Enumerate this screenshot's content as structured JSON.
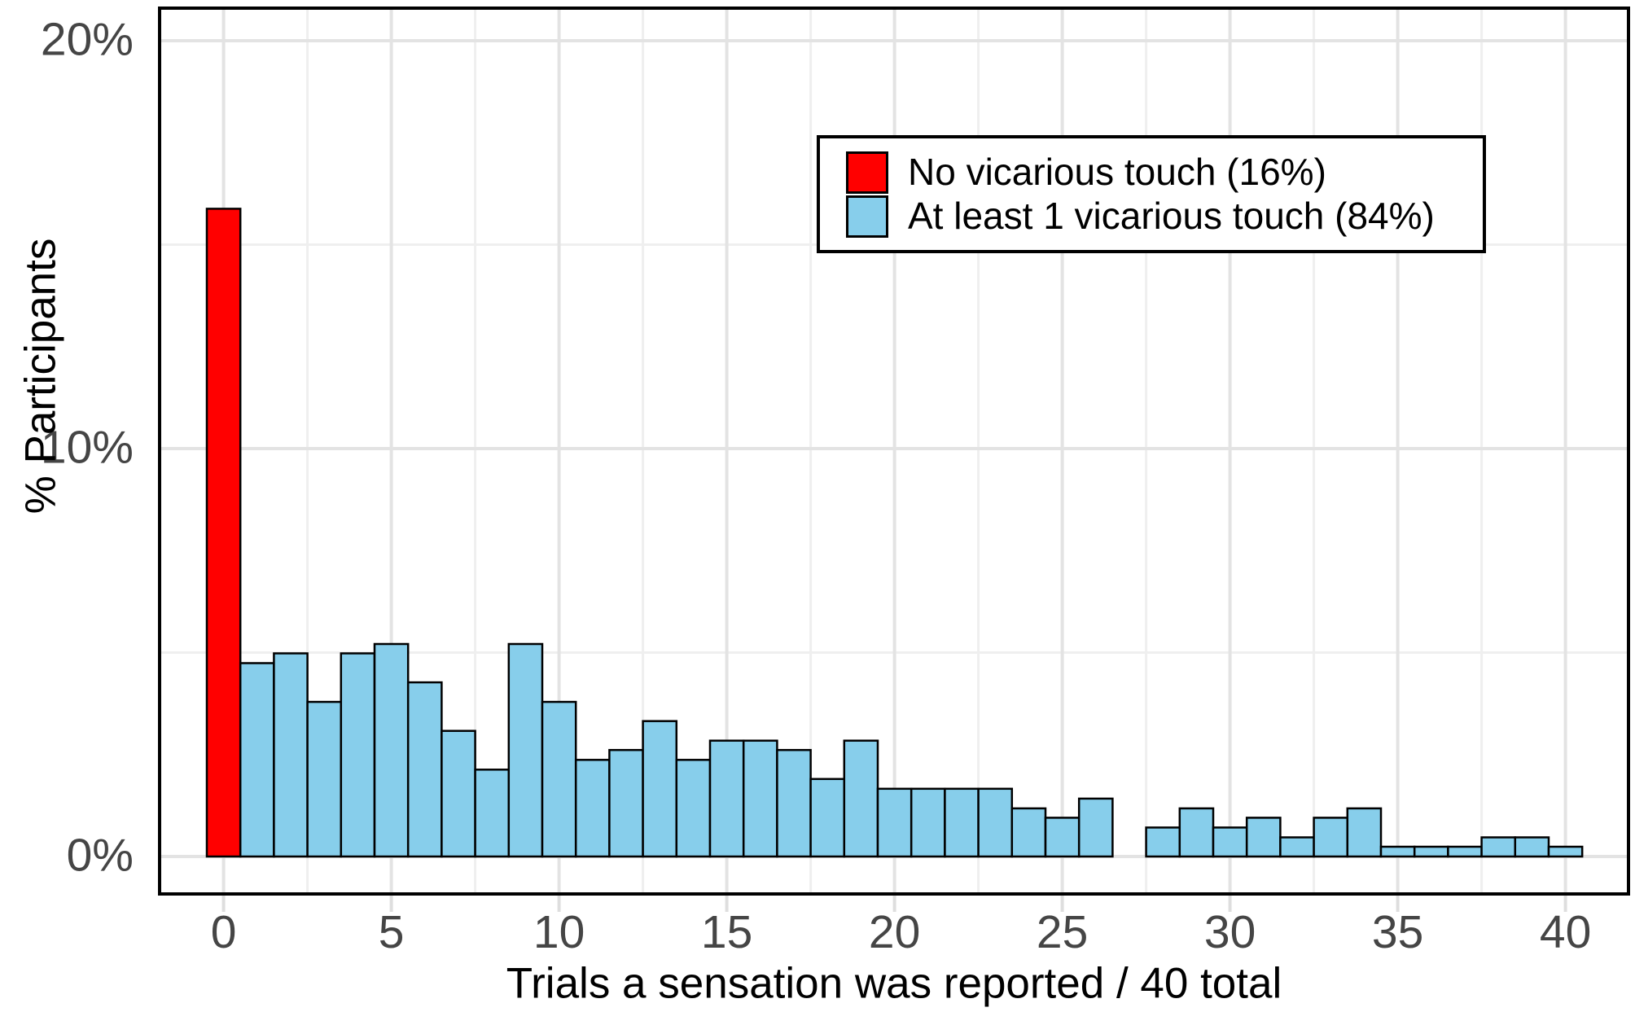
{
  "figure": {
    "x_axis_title": "Trials a sensation was reported / 40 total",
    "y_axis_title": "% Participants"
  },
  "legend": {
    "items": [
      {
        "label": "No vicarious touch (16%)",
        "color": "#ff0000"
      },
      {
        "label": "At least 1 vicarious touch (84%)",
        "color": "#87ceeb"
      }
    ]
  },
  "colors": {
    "background": "#ffffff",
    "panel_border": "#000000",
    "bar_outline": "#000000",
    "grid_major": "#e3e3e3",
    "grid_minor": "#efefef",
    "axis_tick": "#dedede",
    "tick_label": "#454545",
    "axis_title": "#000000",
    "red": "#ff0000",
    "blue": "#87ceeb"
  },
  "chart_data": {
    "type": "bar",
    "subtype": "histogram",
    "title": "",
    "xlabel": "Trials a sensation was reported / 40 total",
    "ylabel": "% Participants",
    "bin_width": 1,
    "xlim": [
      -2,
      42
    ],
    "ylim": [
      0,
      21
    ],
    "grid": "major and minor gridlines on, light gray",
    "legend_position": "top-right inside plot",
    "x_ticks": [
      0,
      5,
      10,
      15,
      20,
      25,
      30,
      35,
      40
    ],
    "x_minor_ticks": [
      2.5,
      7.5,
      12.5,
      17.5,
      22.5,
      27.5,
      32.5,
      37.5
    ],
    "y_ticks": [
      {
        "value": 0,
        "label": "0%"
      },
      {
        "value": 10,
        "label": "10%"
      },
      {
        "value": 20,
        "label": "20%"
      }
    ],
    "y_minor_ticks": [
      5,
      15
    ],
    "series": [
      {
        "name": "No vicarious touch (16%)",
        "color": "#ff0000",
        "points": [
          {
            "x": 0,
            "pct": 15.88
          }
        ]
      },
      {
        "name": "At least 1 vicarious touch (84%)",
        "color": "#87ceeb",
        "points": [
          {
            "x": 1,
            "pct": 4.74
          },
          {
            "x": 2,
            "pct": 4.98
          },
          {
            "x": 3,
            "pct": 3.79
          },
          {
            "x": 4,
            "pct": 4.98
          },
          {
            "x": 5,
            "pct": 5.21
          },
          {
            "x": 6,
            "pct": 4.27
          },
          {
            "x": 7,
            "pct": 3.08
          },
          {
            "x": 8,
            "pct": 2.13
          },
          {
            "x": 9,
            "pct": 5.21
          },
          {
            "x": 10,
            "pct": 3.79
          },
          {
            "x": 11,
            "pct": 2.37
          },
          {
            "x": 12,
            "pct": 2.61
          },
          {
            "x": 13,
            "pct": 3.32
          },
          {
            "x": 14,
            "pct": 2.37
          },
          {
            "x": 15,
            "pct": 2.84
          },
          {
            "x": 16,
            "pct": 2.84
          },
          {
            "x": 17,
            "pct": 2.61
          },
          {
            "x": 18,
            "pct": 1.9
          },
          {
            "x": 19,
            "pct": 2.84
          },
          {
            "x": 20,
            "pct": 1.66
          },
          {
            "x": 21,
            "pct": 1.66
          },
          {
            "x": 22,
            "pct": 1.66
          },
          {
            "x": 23,
            "pct": 1.66
          },
          {
            "x": 24,
            "pct": 1.18
          },
          {
            "x": 25,
            "pct": 0.95
          },
          {
            "x": 26,
            "pct": 1.42
          },
          {
            "x": 27,
            "pct": 0
          },
          {
            "x": 28,
            "pct": 0.71
          },
          {
            "x": 29,
            "pct": 1.18
          },
          {
            "x": 30,
            "pct": 0.71
          },
          {
            "x": 31,
            "pct": 0.95
          },
          {
            "x": 32,
            "pct": 0.47
          },
          {
            "x": 33,
            "pct": 0.95
          },
          {
            "x": 34,
            "pct": 1.18
          },
          {
            "x": 35,
            "pct": 0.24
          },
          {
            "x": 36,
            "pct": 0.24
          },
          {
            "x": 37,
            "pct": 0.24
          },
          {
            "x": 38,
            "pct": 0.47
          },
          {
            "x": 39,
            "pct": 0.47
          },
          {
            "x": 40,
            "pct": 0.24
          }
        ]
      }
    ]
  }
}
